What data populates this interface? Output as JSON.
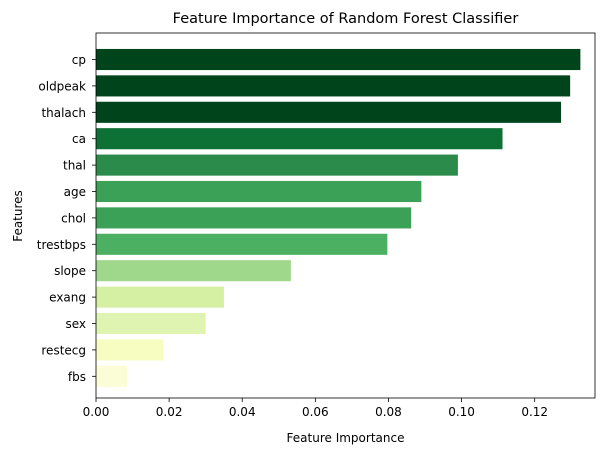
{
  "chart_data": {
    "type": "bar",
    "orientation": "horizontal",
    "title": "Feature Importance of Random Forest Classifier",
    "xlabel": "Feature Importance",
    "ylabel": "Features",
    "xlim": [
      0,
      0.1365
    ],
    "xticks": [
      0,
      0.02,
      0.04,
      0.06,
      0.08,
      0.1,
      0.12
    ],
    "xtick_labels": [
      "0.00",
      "0.02",
      "0.04",
      "0.06",
      "0.08",
      "0.10",
      "0.12"
    ],
    "grid": false,
    "categories": [
      "cp",
      "oldpeak",
      "thalach",
      "ca",
      "thal",
      "age",
      "chol",
      "trestbps",
      "slope",
      "exang",
      "sex",
      "restecg",
      "fbs"
    ],
    "values": [
      0.1325,
      0.1297,
      0.1272,
      0.1112,
      0.099,
      0.089,
      0.0862,
      0.0797,
      0.0533,
      0.035,
      0.03,
      0.0185,
      0.0085
    ],
    "colors": [
      "#00441b",
      "#00441b",
      "#00441b",
      "#0d7135",
      "#2a8b4a",
      "#3aa157",
      "#3aa157",
      "#4cb062",
      "#a0d88b",
      "#d6f0a3",
      "#e0f4b1",
      "#f7fcc0",
      "#fbfdd7"
    ]
  }
}
